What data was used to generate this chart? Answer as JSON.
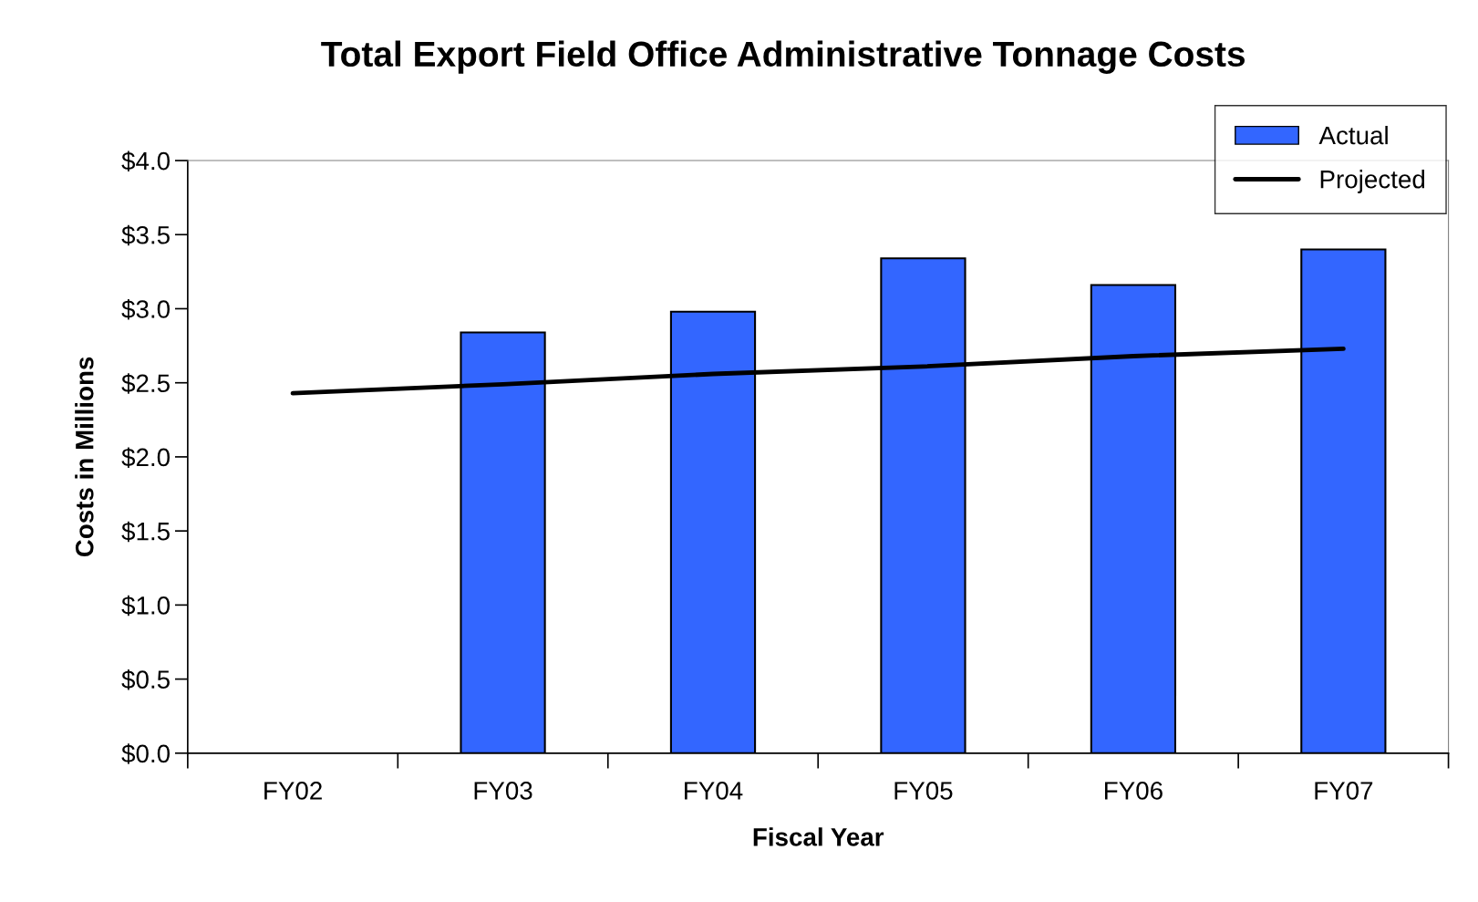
{
  "chart_data": {
    "type": "bar",
    "title": "Total Export Field Office Administrative Tonnage Costs",
    "xlabel": "Fiscal Year",
    "ylabel": "Costs in Millions",
    "categories": [
      "FY02",
      "FY03",
      "FY04",
      "FY05",
      "FY06",
      "FY07"
    ],
    "series": [
      {
        "name": "Actual",
        "color": "#3366ff",
        "values": [
          null,
          2.84,
          2.98,
          3.34,
          3.16,
          3.4
        ]
      },
      {
        "name": "Projected",
        "type": "line",
        "color": "#000000",
        "values": [
          2.43,
          2.49,
          2.56,
          2.61,
          2.68,
          2.73
        ]
      }
    ],
    "ylim": [
      0,
      4.0
    ],
    "yticks": [
      {
        "value": 0,
        "label": "$0.0"
      },
      {
        "value": 0.5,
        "label": "$0.5"
      },
      {
        "value": 1.0,
        "label": "$1.0"
      },
      {
        "value": 1.5,
        "label": "$1.5"
      },
      {
        "value": 2.0,
        "label": "$2.0"
      },
      {
        "value": 2.5,
        "label": "$2.5"
      },
      {
        "value": 3.0,
        "label": "$3.0"
      },
      {
        "value": 3.5,
        "label": "$3.5"
      },
      {
        "value": 4.0,
        "label": "$4.0"
      }
    ],
    "grid": false,
    "legend": "top right",
    "marker": "none",
    "line_style": "solid"
  }
}
